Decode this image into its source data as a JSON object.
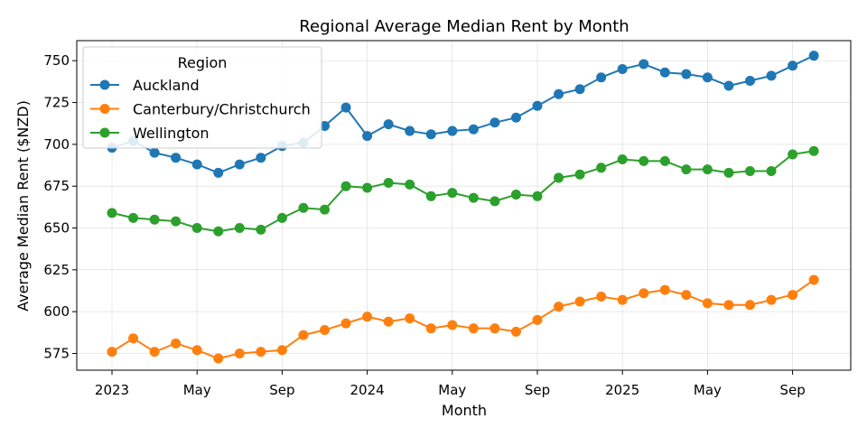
{
  "chart_data": {
    "type": "line",
    "title": "Regional Average Median Rent by Month",
    "xlabel": "Month",
    "ylabel": "Average Median Rent ($NZD)",
    "ylim": [
      565,
      762
    ],
    "yticks": [
      575,
      600,
      625,
      650,
      675,
      700,
      725,
      750
    ],
    "grid": true,
    "legend": {
      "title": "Region",
      "placement": "top-left"
    },
    "x_ticks": [
      {
        "label": "2023",
        "month": "2023-01"
      },
      {
        "label": "May",
        "month": "2023-05"
      },
      {
        "label": "Sep",
        "month": "2023-09"
      },
      {
        "label": "2024",
        "month": "2024-01"
      },
      {
        "label": "May",
        "month": "2024-05"
      },
      {
        "label": "Sep",
        "month": "2024-09"
      },
      {
        "label": "2025",
        "month": "2025-01"
      },
      {
        "label": "May",
        "month": "2025-05"
      },
      {
        "label": "Sep",
        "month": "2025-09"
      }
    ],
    "x": [
      "2023-01",
      "2023-02",
      "2023-03",
      "2023-04",
      "2023-05",
      "2023-06",
      "2023-07",
      "2023-08",
      "2023-09",
      "2023-10",
      "2023-11",
      "2023-12",
      "2024-01",
      "2024-02",
      "2024-03",
      "2024-04",
      "2024-05",
      "2024-06",
      "2024-07",
      "2024-08",
      "2024-09",
      "2024-10",
      "2024-11",
      "2024-12",
      "2025-01",
      "2025-02",
      "2025-03",
      "2025-04",
      "2025-05",
      "2025-06",
      "2025-07",
      "2025-08",
      "2025-09",
      "2025-10"
    ],
    "series": [
      {
        "name": "Auckland",
        "color": "#1f77b4",
        "values": [
          698,
          702,
          695,
          692,
          688,
          683,
          688,
          692,
          699,
          701,
          711,
          722,
          705,
          712,
          708,
          706,
          708,
          709,
          713,
          716,
          723,
          730,
          733,
          740,
          745,
          748,
          743,
          742,
          740,
          735,
          738,
          741,
          747,
          753
        ]
      },
      {
        "name": "Canterbury/Christchurch",
        "color": "#ff7f0e",
        "values": [
          576,
          584,
          576,
          581,
          577,
          572,
          575,
          576,
          577,
          586,
          589,
          593,
          597,
          594,
          596,
          590,
          592,
          590,
          590,
          588,
          595,
          603,
          606,
          609,
          607,
          611,
          613,
          610,
          605,
          604,
          604,
          607,
          610,
          619
        ]
      },
      {
        "name": "Wellington",
        "color": "#2ca02c",
        "values": [
          659,
          656,
          655,
          654,
          650,
          648,
          650,
          649,
          656,
          662,
          661,
          675,
          674,
          677,
          676,
          669,
          671,
          668,
          666,
          670,
          669,
          680,
          682,
          686,
          691,
          690,
          690,
          685,
          685,
          683,
          684,
          684,
          694,
          696
        ]
      }
    ]
  }
}
